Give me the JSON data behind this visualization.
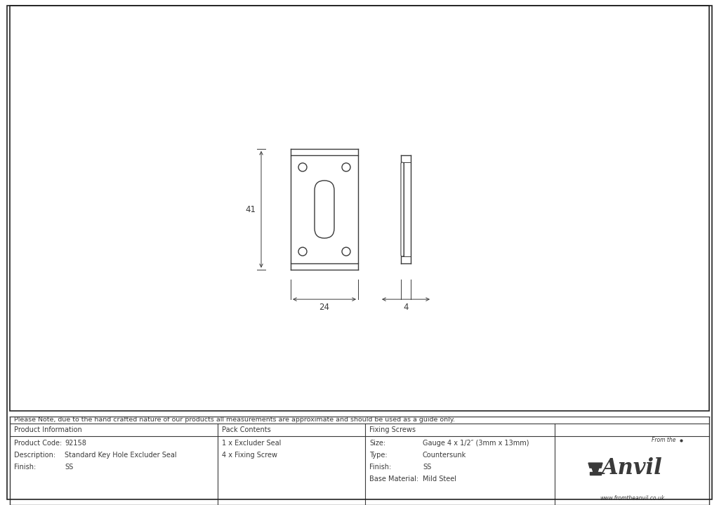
{
  "background_color": "#ffffff",
  "line_color": "#3a3a3a",
  "note_text": "Please Note, due to the hand crafted nature of our products all measurements are approximate and should be used as a guide only.",
  "table_headers": [
    "Product Information",
    "Pack Contents",
    "Fixing Screws",
    ""
  ],
  "product_info": [
    [
      "Product Code:",
      "92158"
    ],
    [
      "Description:",
      "Standard Key Hole Excluder Seal"
    ],
    [
      "Finish:",
      "SS"
    ]
  ],
  "pack_contents": [
    "1 x Excluder Seal",
    "4 x Fixing Screw"
  ],
  "fixing_screws": [
    [
      "Size:",
      "Gauge 4 x 1/2″ (3mm x 13mm)"
    ],
    [
      "Type:",
      "Countersunk"
    ],
    [
      "Finish:",
      "SS"
    ],
    [
      "Base Material:",
      "Mild Steel"
    ]
  ],
  "dim_41": "41",
  "dim_24": "24",
  "dim_4": "4"
}
